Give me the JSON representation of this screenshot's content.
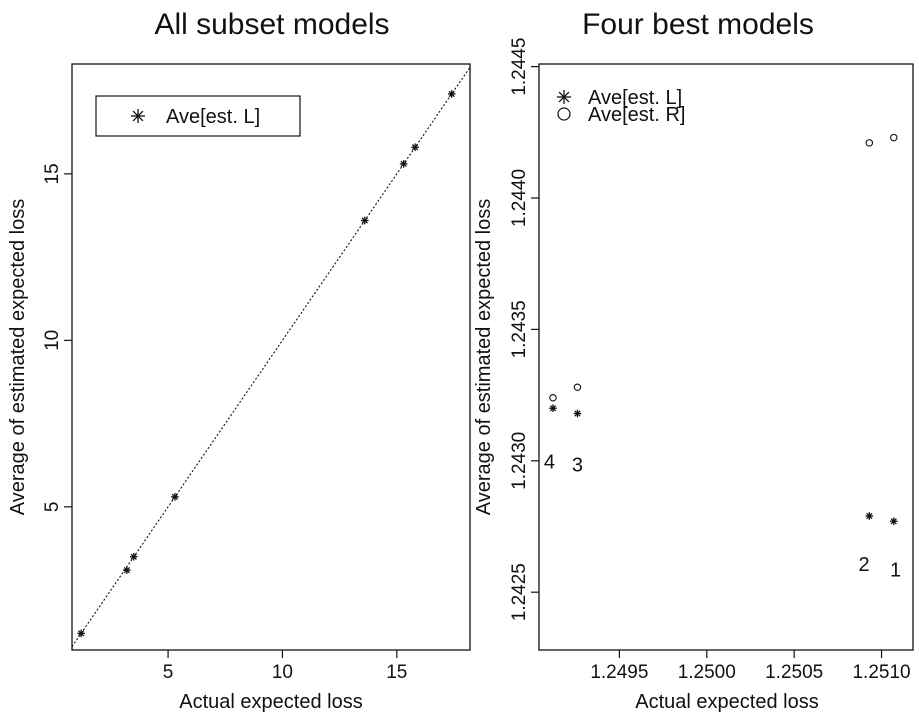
{
  "chart_data": [
    {
      "type": "scatter",
      "title": "All subset models",
      "xlabel": "Actual expected loss",
      "ylabel": "Average of estimated expected loss",
      "xlim": [
        0.8,
        18.2
      ],
      "ylim": [
        0.7,
        18.3
      ],
      "xticks": [
        5,
        10,
        15
      ],
      "yticks": [
        5,
        10,
        15
      ],
      "reference_line": "y = x",
      "legend_position": "top-left",
      "series": [
        {
          "name": "Ave[est. L]",
          "marker": "asterisk",
          "points": [
            [
              1.2,
              1.2
            ],
            [
              3.2,
              3.1
            ],
            [
              3.5,
              3.5
            ],
            [
              5.3,
              5.3
            ],
            [
              13.6,
              13.6
            ],
            [
              15.3,
              15.3
            ],
            [
              15.8,
              15.8
            ],
            [
              17.4,
              17.4
            ]
          ]
        }
      ]
    },
    {
      "type": "scatter",
      "title": "Four best models",
      "xlabel": "Actual expected loss",
      "ylabel": "Average of estimated expected loss",
      "xlim": [
        1.24904,
        1.25118
      ],
      "ylim": [
        1.24228,
        1.24451
      ],
      "xticks": [
        1.2495,
        1.25,
        1.2505,
        1.251
      ],
      "xtick_labels": [
        "1.2495",
        "1.2500",
        "1.2505",
        "1.2510"
      ],
      "yticks": [
        1.2425,
        1.243,
        1.2435,
        1.244,
        1.2445
      ],
      "ytick_labels": [
        "1.2425",
        "1.2430",
        "1.2435",
        "1.2440",
        "1.2445"
      ],
      "legend_position": "top-left",
      "series": [
        {
          "name": "Ave[est. L]",
          "marker": "asterisk",
          "points": [
            [
              1.24912,
              1.2432
            ],
            [
              1.24926,
              1.24318
            ],
            [
              1.25093,
              1.24279
            ],
            [
              1.25107,
              1.24277
            ]
          ]
        },
        {
          "name": "Ave[est. R]",
          "marker": "circle",
          "points": [
            [
              1.24912,
              1.24324
            ],
            [
              1.24926,
              1.24328
            ],
            [
              1.25093,
              1.24421
            ],
            [
              1.25107,
              1.24423
            ]
          ]
        }
      ],
      "annotations": [
        {
          "text": "4",
          "x": 1.2491,
          "y": 1.24297
        },
        {
          "text": "3",
          "x": 1.24926,
          "y": 1.24296
        },
        {
          "text": "2",
          "x": 1.2509,
          "y": 1.24258
        },
        {
          "text": "1",
          "x": 1.25108,
          "y": 1.24256
        }
      ]
    }
  ]
}
